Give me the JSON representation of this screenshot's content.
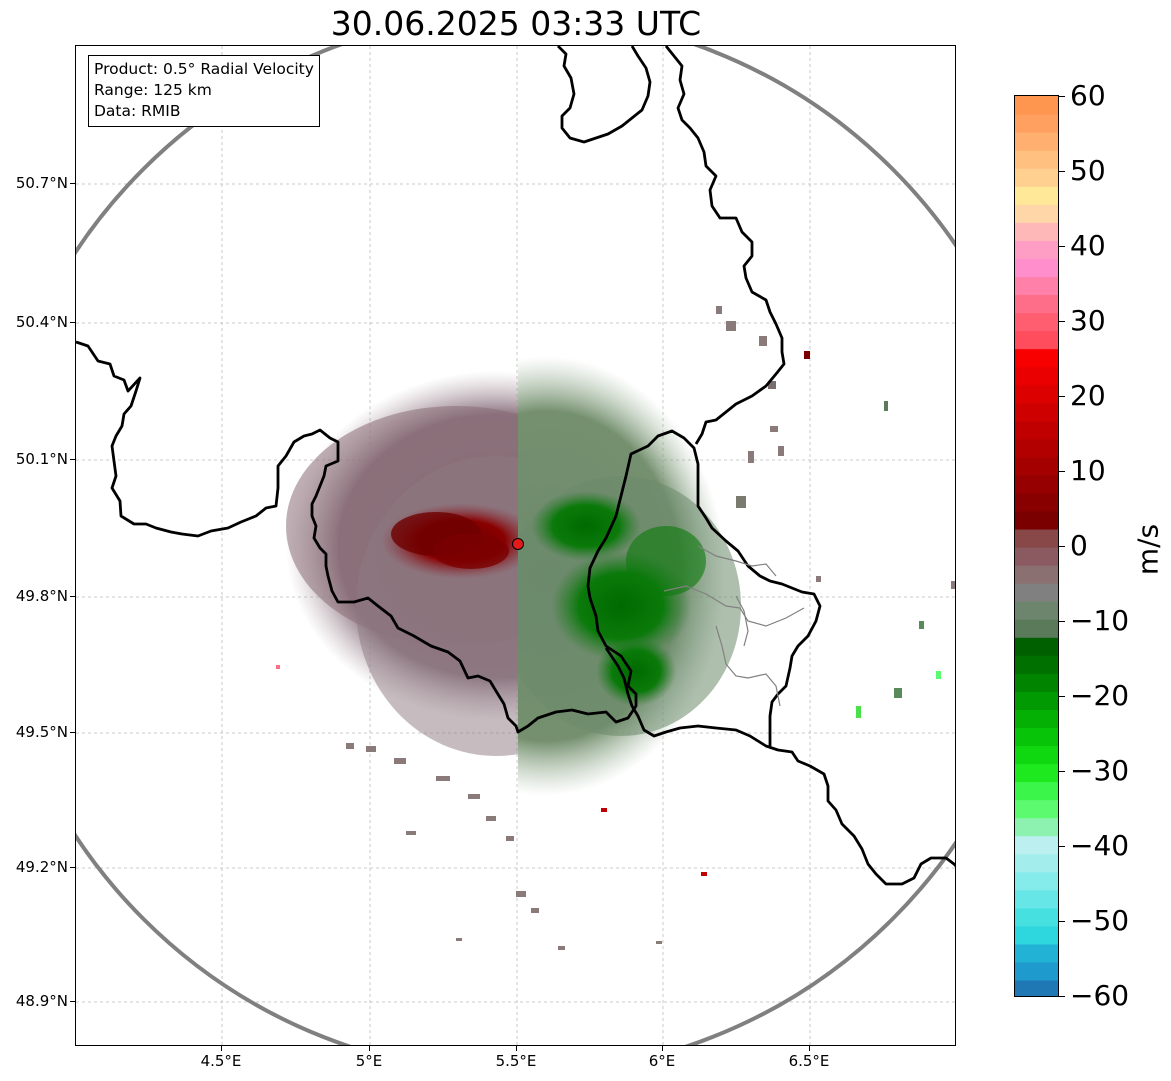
{
  "title": "30.06.2025 03:33 UTC",
  "info": {
    "product": "Product: 0.5° Radial Velocity",
    "range": "Range: 125 km",
    "source": "Data: RMIB"
  },
  "axes": {
    "lat_labels": [
      "50.7°N",
      "50.4°N",
      "50.1°N",
      "49.8°N",
      "49.5°N",
      "49.2°N",
      "48.9°N"
    ],
    "lon_labels": [
      "4.5°E",
      "5°E",
      "5.5°E",
      "6°E",
      "6.5°E"
    ]
  },
  "colorbar": {
    "unit": "m/s",
    "tick_labels": [
      "60",
      "50",
      "40",
      "30",
      "20",
      "10",
      "0",
      "−10",
      "−20",
      "−30",
      "−40",
      "−50",
      "−60"
    ],
    "min": -60,
    "max": 60,
    "stops": [
      [
        "#1f77b4",
        "#1f9acc",
        "#22b2d5",
        "#2ed6de",
        "#47e0e0",
        "#66e6e6",
        "#86ebeb",
        "#a3eded",
        "#bcf0f0"
      ],
      [
        "#8df2b0",
        "#5cfa6e",
        "#3cf54a",
        "#1ee81e",
        "#10d810",
        "#08c408",
        "#04b004",
        "#029a02",
        "#018501",
        "#007000",
        "#006000"
      ],
      [
        "#5a7a5a",
        "#6c856c",
        "#808080",
        "#8a7070",
        "#8a5a60",
        "#884848"
      ],
      [
        "#7a0000",
        "#880000",
        "#960000",
        "#a40000",
        "#b20000",
        "#c00000",
        "#ce0000",
        "#dc0000",
        "#ea0000",
        "#f80000"
      ],
      [
        "#ff4d5e",
        "#ff5e70",
        "#ff6e88",
        "#ff80a8",
        "#ff8fcc",
        "#ff9ec4",
        "#ffb8b8",
        "#ffd6a8",
        "#ffe898",
        "#ffd090",
        "#ffc080",
        "#ffb070",
        "#ffa060",
        "#ff9650"
      ]
    ]
  },
  "map": {
    "radar_site": "radar-site",
    "colors": {
      "border": "#000000",
      "range_ring": "#808080",
      "grid": "#bbbbbb",
      "inbound_green": "#007a00",
      "outbound_red": "#7a0000",
      "clutter_mauve": "#8a6e76",
      "clutter_sage": "#6e8a6e",
      "site_fill": "#e31a1c"
    }
  }
}
